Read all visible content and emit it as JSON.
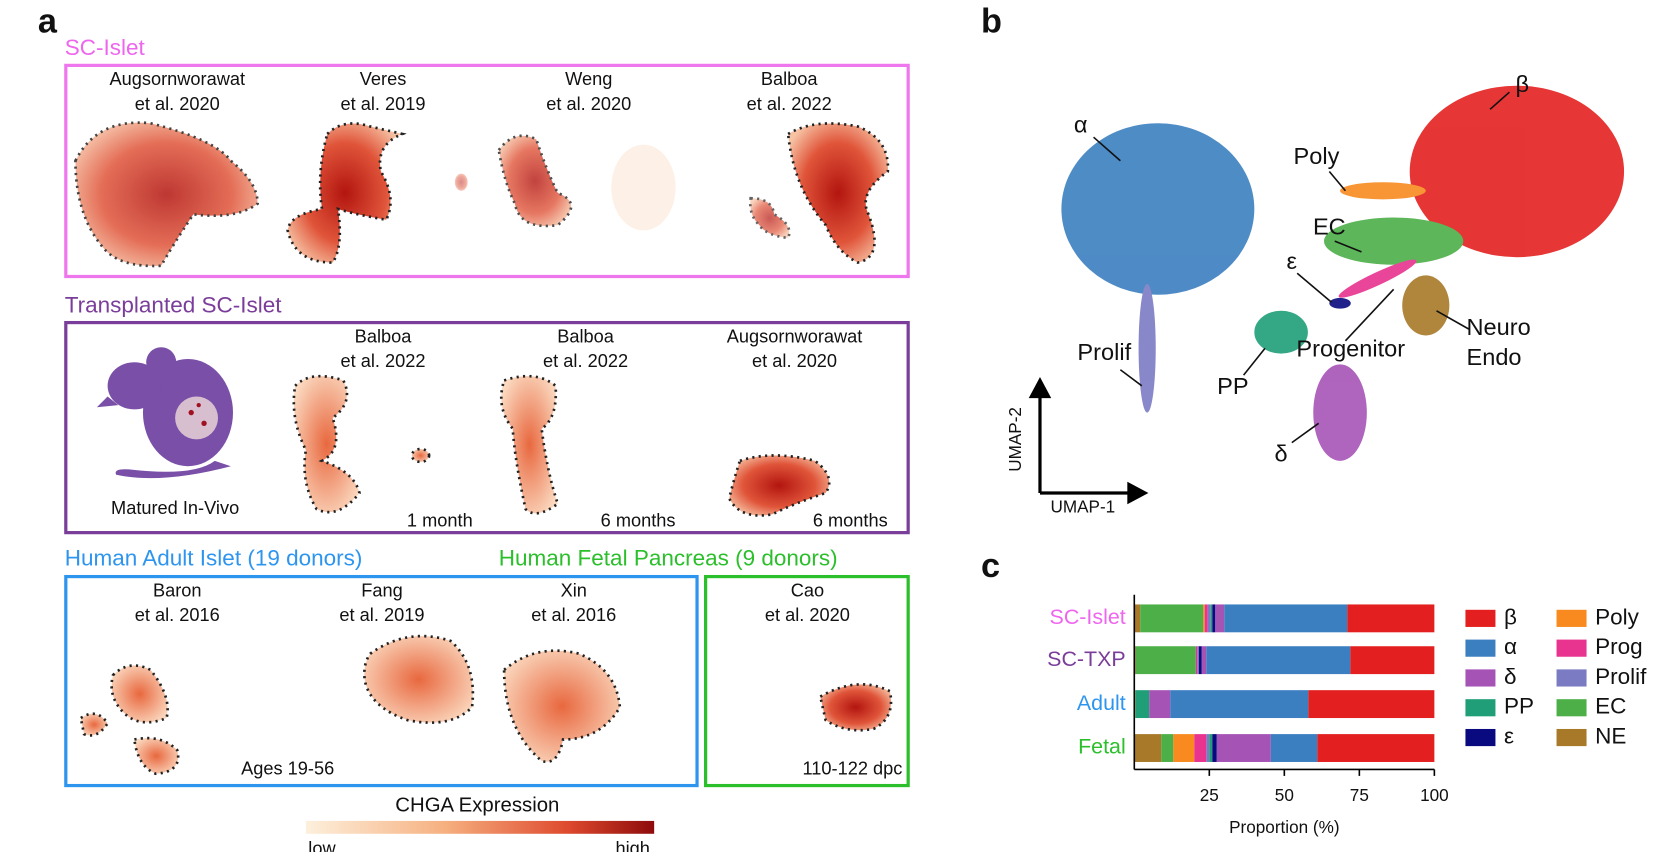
{
  "panel_a": {
    "label": "a",
    "sections": [
      {
        "title": "SC-Islet",
        "datasets": [
          {
            "author": "Augsornworawat",
            "citation": "et al. 2020"
          },
          {
            "author": "Veres",
            "citation": "et al. 2019"
          },
          {
            "author": "Weng",
            "citation": "et al. 2020"
          },
          {
            "author": "Balboa",
            "citation": "et al. 2022"
          }
        ]
      },
      {
        "title": "Transplanted SC-Islet",
        "note": "Matured In-Vivo",
        "datasets": [
          {
            "author": "Balboa",
            "citation": "et al. 2022",
            "duration": "1 month"
          },
          {
            "author": "Balboa",
            "citation": "et al. 2022",
            "duration": "6 months"
          },
          {
            "author": "Augsornworawat",
            "citation": "et al. 2020",
            "duration": "6 months"
          }
        ]
      },
      {
        "title": "Human Adult Islet (19 donors)",
        "note": "Ages 19-56",
        "datasets": [
          {
            "author": "Baron",
            "citation": "et al. 2016"
          },
          {
            "author": "Fang",
            "citation": "et al. 2019"
          },
          {
            "author": "Xin",
            "citation": "et al. 2016"
          }
        ]
      },
      {
        "title": "Human Fetal Pancreas (9 donors)",
        "note": "110-122 dpc",
        "datasets": [
          {
            "author": "Cao",
            "citation": "et al. 2020"
          }
        ]
      }
    ],
    "colorbar": {
      "title": "CHGA Expression",
      "low": "low",
      "high": "high"
    }
  },
  "panel_b": {
    "label": "b",
    "x_label": "UMAP-1",
    "y_label": "UMAP-2",
    "cluster_labels": [
      "α",
      "β",
      "Poly",
      "EC",
      "ε",
      "Progenitor",
      "Neuro",
      "Endo",
      "Prolif",
      "PP",
      "δ"
    ]
  },
  "chart_data": {
    "type": "stacked_bar",
    "panel_label": "c",
    "orientation": "horizontal",
    "categories": [
      "SC-Islet",
      "SC-TXP",
      "Adult",
      "Fetal"
    ],
    "category_colors": [
      "#ee66ee",
      "#7a3d9a",
      "#2e95ef",
      "#2cbf2c"
    ],
    "x_label": "Proportion (%)",
    "xlim": [
      0,
      100
    ],
    "xticks": [
      25,
      50,
      75,
      100
    ],
    "series": [
      {
        "name": "NE",
        "color": "#a87929",
        "values": [
          2,
          0.5,
          0,
          9
        ]
      },
      {
        "name": "EC",
        "color": "#4caf48",
        "values": [
          21,
          20,
          0.5,
          4
        ]
      },
      {
        "name": "Poly",
        "color": "#f88a1f",
        "values": [
          0.5,
          0,
          0,
          7
        ]
      },
      {
        "name": "Prog",
        "color": "#e8338f",
        "values": [
          1,
          0.5,
          0,
          4
        ]
      },
      {
        "name": "Prolif",
        "color": "#7b7bc4",
        "values": [
          1,
          0.5,
          0,
          1
        ]
      },
      {
        "name": "PP",
        "color": "#1f9e77",
        "values": [
          0.5,
          0,
          4.5,
          1
        ]
      },
      {
        "name": "ε",
        "color": "#0a0a80",
        "values": [
          1,
          1,
          0,
          1.5
        ]
      },
      {
        "name": "δ",
        "color": "#a653b6",
        "values": [
          3,
          1.5,
          7,
          18
        ]
      },
      {
        "name": "α",
        "color": "#3b7fc0",
        "values": [
          41,
          48,
          46,
          15.5
        ]
      },
      {
        "name": "β",
        "color": "#e3201f",
        "values": [
          29,
          28,
          42,
          39
        ]
      }
    ]
  }
}
